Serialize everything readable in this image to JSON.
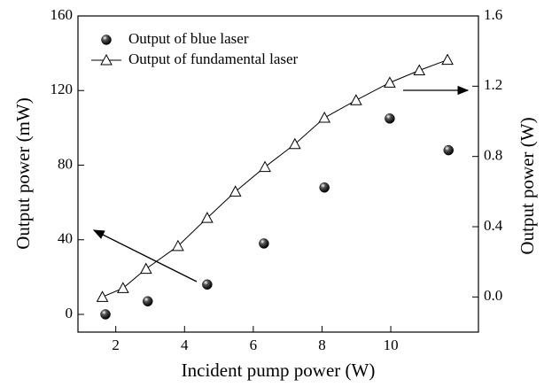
{
  "chart_data": {
    "type": "scatter",
    "x_label": "Incident pump power (W)",
    "y_label": "Output power (mW)",
    "y2_label": "Output power (W)",
    "xlim": [
      0.9,
      12.55
    ],
    "xticks": [
      2,
      4,
      6,
      8,
      10
    ],
    "ylim": [
      -9.5,
      160
    ],
    "yticks": [
      0,
      40,
      80,
      120,
      160
    ],
    "y2lim": [
      -0.2,
      1.6
    ],
    "y2ticks": [
      {
        "value": 0,
        "label": "0.0"
      },
      0.4,
      0.8,
      1.2,
      1.6
    ],
    "legend": "upper left",
    "series": [
      {
        "name": "Output of blue laser",
        "color": "#000000",
        "marker": "sphere",
        "line": false,
        "x": [
          1.7,
          2.93,
          4.66,
          6.31,
          8.07,
          9.97,
          11.68
        ],
        "values": [
          0,
          7,
          16,
          38,
          68,
          105,
          88
        ]
      },
      {
        "name": "Output of fundamental laser",
        "color": "#000000",
        "marker": "triangle",
        "line": true,
        "axis": "y2",
        "x": [
          1.61,
          2.21,
          2.88,
          3.81,
          4.66,
          5.48,
          6.34,
          7.21,
          8.07,
          8.99,
          9.97,
          10.83,
          11.65
        ],
        "values": [
          0.0,
          0.05,
          0.16,
          0.29,
          0.45,
          0.6,
          0.74,
          0.87,
          1.02,
          1.12,
          1.22,
          1.29,
          1.35
        ]
      }
    ]
  }
}
